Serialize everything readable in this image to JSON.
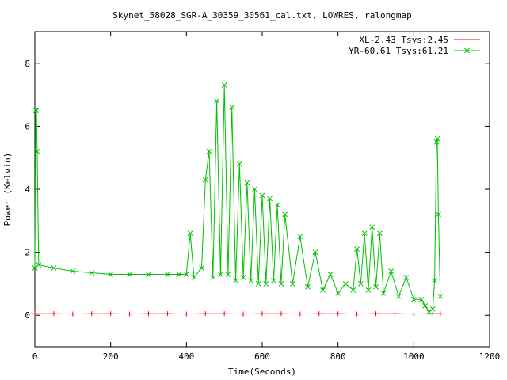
{
  "chart_data": {
    "type": "line",
    "title": "Skynet_58028_SGR-A_30359_30561_cal.txt, LOWRES, ralongmap",
    "xlabel": "Time(Seconds)",
    "ylabel": "Power (Kelvin)",
    "xlim": [
      0,
      1200
    ],
    "ylim": [
      -1,
      9
    ],
    "xticks": [
      0,
      200,
      400,
      600,
      800,
      1000,
      1200
    ],
    "yticks": [
      0,
      2,
      4,
      6,
      8
    ],
    "grid": false,
    "legend_position": "top-right",
    "series": [
      {
        "name": "XL-2.43 Tsys:2.45",
        "color": "#ff0000",
        "marker": "plus",
        "x": [
          0,
          50,
          100,
          150,
          200,
          250,
          300,
          350,
          400,
          450,
          500,
          550,
          600,
          650,
          700,
          750,
          800,
          850,
          900,
          950,
          1000,
          1050,
          1070
        ],
        "y": [
          0.05,
          0.05,
          0.04,
          0.05,
          0.05,
          0.04,
          0.05,
          0.05,
          0.04,
          0.05,
          0.05,
          0.04,
          0.05,
          0.05,
          0.04,
          0.05,
          0.05,
          0.04,
          0.05,
          0.05,
          0.04,
          0.05,
          0.05
        ]
      },
      {
        "name": "YR-60.61 Tsys:61.21",
        "color": "#00c000",
        "marker": "cross",
        "x": [
          0,
          2,
          4,
          6,
          10,
          50,
          100,
          150,
          200,
          250,
          300,
          350,
          380,
          400,
          410,
          420,
          440,
          450,
          460,
          470,
          480,
          490,
          500,
          510,
          520,
          530,
          540,
          550,
          560,
          570,
          580,
          590,
          600,
          610,
          620,
          630,
          640,
          650,
          660,
          680,
          700,
          720,
          740,
          760,
          780,
          800,
          820,
          840,
          850,
          860,
          870,
          880,
          890,
          900,
          910,
          920,
          940,
          960,
          980,
          1000,
          1020,
          1030,
          1040,
          1050,
          1055,
          1060,
          1062,
          1065,
          1070
        ],
        "y": [
          1.5,
          6.5,
          6.5,
          5.2,
          1.6,
          1.5,
          1.4,
          1.35,
          1.3,
          1.3,
          1.3,
          1.3,
          1.3,
          1.3,
          2.6,
          1.2,
          1.5,
          4.3,
          5.2,
          1.2,
          6.8,
          1.3,
          7.3,
          1.3,
          6.6,
          1.1,
          4.8,
          1.2,
          4.2,
          1.1,
          4.0,
          1.0,
          3.8,
          1.0,
          3.7,
          1.1,
          3.5,
          1.0,
          3.2,
          1.0,
          2.5,
          0.9,
          2.0,
          0.8,
          1.3,
          0.7,
          1.0,
          0.8,
          2.1,
          1.0,
          2.6,
          0.8,
          2.8,
          0.9,
          2.6,
          0.7,
          1.4,
          0.6,
          1.2,
          0.5,
          0.5,
          0.3,
          0.1,
          0.2,
          1.1,
          5.5,
          5.6,
          3.2,
          0.6
        ]
      }
    ]
  }
}
